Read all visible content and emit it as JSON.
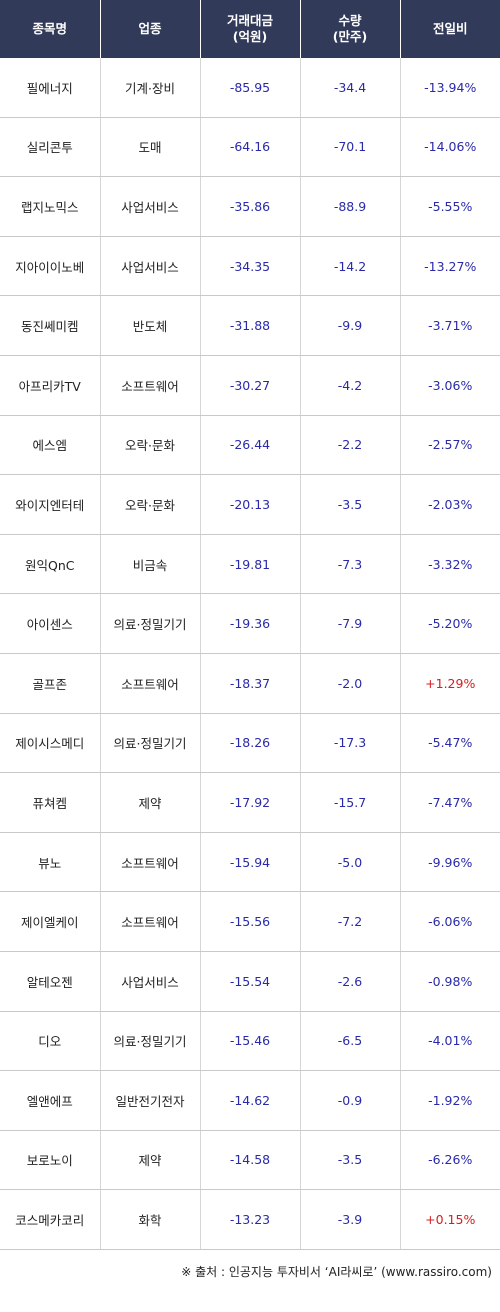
{
  "header": {
    "name": "종목명",
    "sector": "업종",
    "amount_line1": "거래대금",
    "amount_line2": "(억원)",
    "volume_line1": "수량",
    "volume_line2": "(만주)",
    "change": "전일비"
  },
  "rows": [
    {
      "name": "필에너지",
      "sector": "기계·장비",
      "amount": "-85.95",
      "volume": "-34.4",
      "change": "-13.94%",
      "up": false
    },
    {
      "name": "실리콘투",
      "sector": "도매",
      "amount": "-64.16",
      "volume": "-70.1",
      "change": "-14.06%",
      "up": false
    },
    {
      "name": "랩지노믹스",
      "sector": "사업서비스",
      "amount": "-35.86",
      "volume": "-88.9",
      "change": "-5.55%",
      "up": false
    },
    {
      "name": "지아이이노베",
      "sector": "사업서비스",
      "amount": "-34.35",
      "volume": "-14.2",
      "change": "-13.27%",
      "up": false
    },
    {
      "name": "동진쎄미켐",
      "sector": "반도체",
      "amount": "-31.88",
      "volume": "-9.9",
      "change": "-3.71%",
      "up": false
    },
    {
      "name": "아프리카TV",
      "sector": "소프트웨어",
      "amount": "-30.27",
      "volume": "-4.2",
      "change": "-3.06%",
      "up": false
    },
    {
      "name": "에스엠",
      "sector": "오락·문화",
      "amount": "-26.44",
      "volume": "-2.2",
      "change": "-2.57%",
      "up": false
    },
    {
      "name": "와이지엔터테",
      "sector": "오락·문화",
      "amount": "-20.13",
      "volume": "-3.5",
      "change": "-2.03%",
      "up": false
    },
    {
      "name": "원익QnC",
      "sector": "비금속",
      "amount": "-19.81",
      "volume": "-7.3",
      "change": "-3.32%",
      "up": false
    },
    {
      "name": "아이센스",
      "sector": "의료·정밀기기",
      "amount": "-19.36",
      "volume": "-7.9",
      "change": "-5.20%",
      "up": false
    },
    {
      "name": "골프존",
      "sector": "소프트웨어",
      "amount": "-18.37",
      "volume": "-2.0",
      "change": "+1.29%",
      "up": true
    },
    {
      "name": "제이시스메디",
      "sector": "의료·정밀기기",
      "amount": "-18.26",
      "volume": "-17.3",
      "change": "-5.47%",
      "up": false
    },
    {
      "name": "퓨쳐켐",
      "sector": "제약",
      "amount": "-17.92",
      "volume": "-15.7",
      "change": "-7.47%",
      "up": false
    },
    {
      "name": "뷰노",
      "sector": "소프트웨어",
      "amount": "-15.94",
      "volume": "-5.0",
      "change": "-9.96%",
      "up": false
    },
    {
      "name": "제이엘케이",
      "sector": "소프트웨어",
      "amount": "-15.56",
      "volume": "-7.2",
      "change": "-6.06%",
      "up": false
    },
    {
      "name": "알테오젠",
      "sector": "사업서비스",
      "amount": "-15.54",
      "volume": "-2.6",
      "change": "-0.98%",
      "up": false
    },
    {
      "name": "디오",
      "sector": "의료·정밀기기",
      "amount": "-15.46",
      "volume": "-6.5",
      "change": "-4.01%",
      "up": false
    },
    {
      "name": "엘앤에프",
      "sector": "일반전기전자",
      "amount": "-14.62",
      "volume": "-0.9",
      "change": "-1.92%",
      "up": false
    },
    {
      "name": "보로노이",
      "sector": "제약",
      "amount": "-14.58",
      "volume": "-3.5",
      "change": "-6.26%",
      "up": false
    },
    {
      "name": "코스메카코리",
      "sector": "화학",
      "amount": "-13.23",
      "volume": "-3.9",
      "change": "+0.15%",
      "up": true
    }
  ],
  "footer": "※ 출처 : 인공지능 투자비서 ‘AI라씨로’ (www.rassiro.com)",
  "colors": {
    "header_bg": "#323a5a",
    "number_blue": "#2a2aa8",
    "up_red": "#d81c1c"
  }
}
